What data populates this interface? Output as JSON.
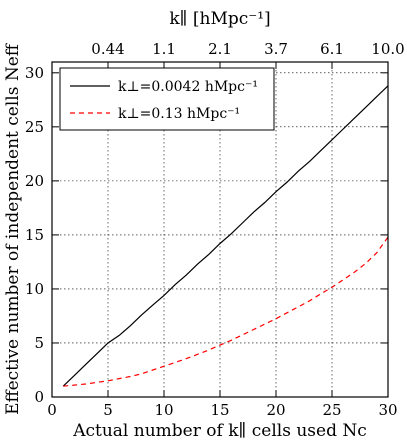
{
  "chart_data": {
    "type": "line",
    "xlabel": "Actual number of k∥ cells used Nc",
    "ylabel": "Effective number of independent cells Neff",
    "top_xlabel": "k∥ [hMpc⁻¹]",
    "xlim": [
      0,
      30
    ],
    "ylim": [
      0,
      31
    ],
    "x_ticks": [
      0,
      5,
      10,
      15,
      20,
      25,
      30
    ],
    "y_ticks": [
      0,
      5,
      10,
      15,
      20,
      25,
      30
    ],
    "top_ticks": [
      {
        "x": 5,
        "label": "0.44"
      },
      {
        "x": 10,
        "label": "1.1"
      },
      {
        "x": 15,
        "label": "2.1"
      },
      {
        "x": 20,
        "label": "3.7"
      },
      {
        "x": 25,
        "label": "6.1"
      },
      {
        "x": 30,
        "label": "10.0"
      }
    ],
    "grid": true,
    "legend_position": "top-left",
    "series": [
      {
        "name": "k⊥=0.0042 hMpc⁻¹",
        "color": "#000000",
        "style": "solid",
        "x": [
          1,
          2,
          3,
          4,
          5,
          6,
          7,
          8,
          9,
          10,
          11,
          12,
          13,
          14,
          15,
          16,
          17,
          18,
          19,
          20,
          21,
          22,
          23,
          24,
          25,
          26,
          27,
          28,
          29,
          30
        ],
        "y": [
          1.0,
          2.0,
          3.0,
          4.0,
          5.0,
          5.7,
          6.6,
          7.6,
          8.5,
          9.4,
          10.4,
          11.3,
          12.3,
          13.2,
          14.2,
          15.1,
          16.1,
          17.1,
          18.0,
          19.0,
          19.9,
          20.9,
          21.8,
          22.8,
          23.8,
          24.8,
          25.8,
          26.8,
          27.8,
          28.8
        ]
      },
      {
        "name": "k⊥=0.13 hMpc⁻¹",
        "color": "#ff0000",
        "style": "dashed",
        "x": [
          1,
          2,
          3,
          4,
          5,
          6,
          7,
          8,
          9,
          10,
          11,
          12,
          13,
          14,
          15,
          16,
          17,
          18,
          19,
          20,
          21,
          22,
          23,
          24,
          25,
          26,
          27,
          28,
          29,
          30
        ],
        "y": [
          1.0,
          1.1,
          1.2,
          1.35,
          1.5,
          1.7,
          1.9,
          2.15,
          2.5,
          2.85,
          3.2,
          3.55,
          3.95,
          4.35,
          4.8,
          5.25,
          5.75,
          6.25,
          6.75,
          7.25,
          7.8,
          8.35,
          8.9,
          9.55,
          10.15,
          10.85,
          11.55,
          12.35,
          13.35,
          14.8
        ]
      }
    ]
  }
}
